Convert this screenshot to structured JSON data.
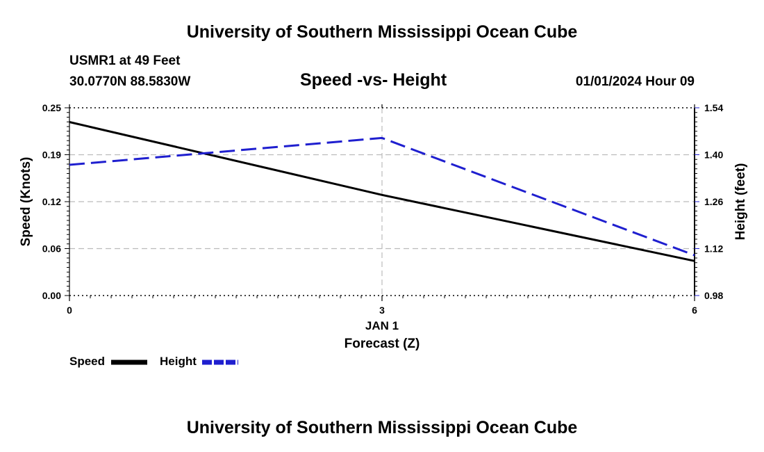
{
  "header": {
    "title": "University of Southern Mississippi Ocean Cube",
    "station": "USMR1 at 49 Feet",
    "coords": "30.0770N  88.5830W",
    "datetime": "01/01/2024 Hour 09"
  },
  "footer": {
    "title": "University of Southern Mississippi Ocean Cube"
  },
  "colors": {
    "speed": "#000000",
    "height": "#1f1fcf",
    "grid": "#bbbbbb"
  },
  "chart_data": {
    "type": "line",
    "title": "Speed -vs- Height",
    "xlabel": "Forecast (Z)",
    "x_sublabel": "JAN 1",
    "ylabel_left": "Speed (Knots)",
    "ylabel_right": "Height (feet)",
    "x": [
      0,
      3,
      6
    ],
    "x_ticks": [
      "0",
      "3",
      "6"
    ],
    "xlim": [
      0,
      6
    ],
    "ylim_left": [
      0.0,
      0.25
    ],
    "ylim_right": [
      0.98,
      1.54
    ],
    "y_ticks_left": [
      "0.00",
      "0.06",
      "0.12",
      "0.19",
      "0.25"
    ],
    "y_ticks_right": [
      "0.98",
      "1.12",
      "1.26",
      "1.40",
      "1.54"
    ],
    "grid": true,
    "series": [
      {
        "name": "Speed",
        "axis": "left",
        "style": "solid",
        "values": [
          0.231,
          0.134,
          0.046
        ]
      },
      {
        "name": "Height",
        "axis": "right",
        "style": "dashed",
        "values": [
          1.37,
          1.45,
          1.1
        ]
      }
    ],
    "legend": [
      "Speed",
      "Height"
    ],
    "legend_position": "bottom-left"
  }
}
